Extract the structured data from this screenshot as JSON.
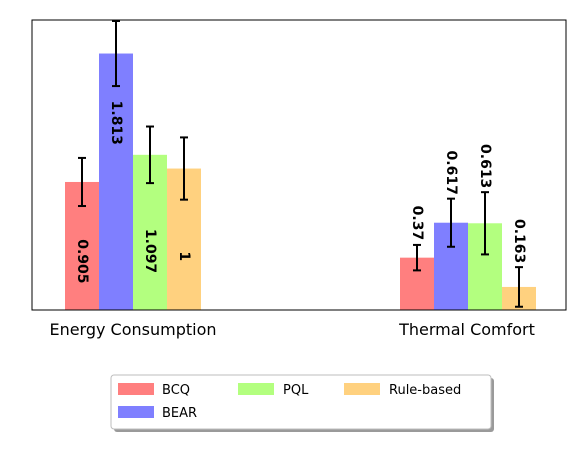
{
  "chart_data": {
    "type": "bar",
    "categories": [
      "Energy Consumption",
      "Thermal Comfort"
    ],
    "series": [
      {
        "name": "BCQ",
        "color": "#ff7f7f",
        "values": [
          0.905,
          0.37
        ],
        "errors": [
          0.17,
          0.09
        ],
        "labels": [
          "0.905",
          "0.37"
        ]
      },
      {
        "name": "BEAR",
        "color": "#7f7fff",
        "values": [
          1.813,
          0.617
        ],
        "errors": [
          0.23,
          0.17
        ],
        "labels": [
          "1.813",
          "0.617"
        ]
      },
      {
        "name": "PQL",
        "color": "#b3ff7f",
        "values": [
          1.097,
          0.613
        ],
        "errors": [
          0.2,
          0.22
        ],
        "labels": [
          "1.097",
          "0.613"
        ]
      },
      {
        "name": "Rule-based",
        "color": "#ffd17f",
        "values": [
          1,
          0.163
        ],
        "errors": [
          0.22,
          0.14
        ],
        "labels": [
          "1",
          "0.163"
        ]
      }
    ],
    "ylim": [
      0,
      2.05
    ],
    "grid": false,
    "legend_position": "bottom"
  }
}
